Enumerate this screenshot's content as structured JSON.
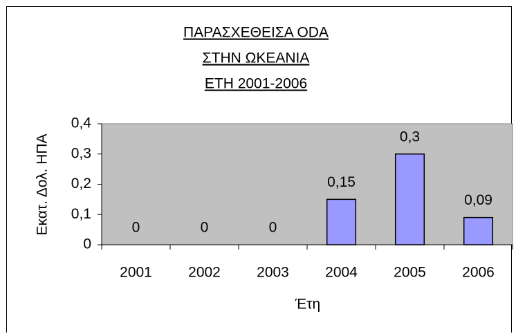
{
  "chart_data": {
    "type": "bar",
    "title": [
      "ΠΑΡΑΣΧΕΘΕΙΣΑ ODA",
      "ΣΤΗΝ ΩΚΕΑΝΙΑ",
      "ΕΤΗ 2001-2006"
    ],
    "x_label": "Έτη",
    "y_label": "Εκατ. Δολ. ΗΠΑ",
    "categories": [
      "2001",
      "2002",
      "2003",
      "2004",
      "2005",
      "2006"
    ],
    "values": [
      0,
      0,
      0,
      0.15,
      0.3,
      0.09
    ],
    "value_labels": [
      "0",
      "0",
      "0",
      "0,15",
      "0,3",
      "0,09"
    ],
    "color": "#9999ff",
    "ylim": [
      0,
      0.4
    ],
    "yticks": [
      0,
      {
        "value": 0.1,
        "label": "0,1"
      },
      {
        "value": 0.2,
        "label": "0,2"
      },
      {
        "value": 0.3,
        "label": "0,3"
      },
      {
        "value": 0.4,
        "label": "0,4"
      }
    ],
    "grid": false
  }
}
